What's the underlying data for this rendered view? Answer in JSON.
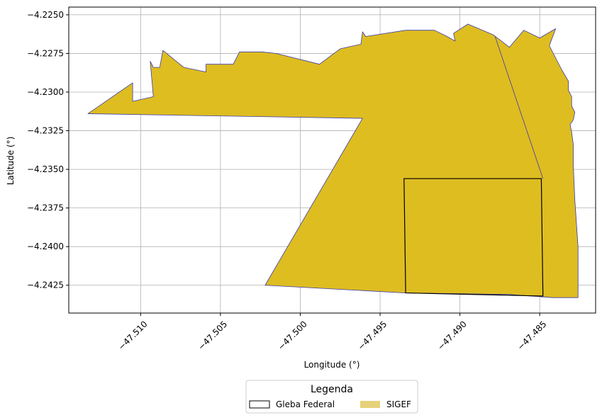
{
  "chart_data": {
    "type": "map",
    "xlabel": "Longitude (°)",
    "ylabel": "Latitude (°)",
    "xlim": [
      -47.5145,
      -47.4815
    ],
    "ylim": [
      -4.2443,
      -4.2245
    ],
    "x_ticks": [
      -47.51,
      -47.505,
      -47.5,
      -47.495,
      -47.49,
      -47.485
    ],
    "x_tick_labels": [
      "−47.510",
      "−47.505",
      "−47.500",
      "−47.495",
      "−47.490",
      "−47.485"
    ],
    "y_ticks": [
      -4.225,
      -4.2275,
      -4.23,
      -4.2325,
      -4.235,
      -4.2375,
      -4.24,
      -4.2425
    ],
    "y_tick_labels": [
      "−4.2250",
      "−4.2275",
      "−4.2300",
      "−4.2325",
      "−4.2350",
      "−4.2375",
      "−4.2400",
      "−4.2425"
    ],
    "grid": true,
    "legend_position": "bottom-center, below axes",
    "legend": {
      "title": "Legenda",
      "entries": [
        {
          "label": "Gleba Federal",
          "style": "outline",
          "color": "#000000"
        },
        {
          "label": "SIGEF",
          "style": "fill",
          "color": "#e6d27a"
        }
      ]
    },
    "layers": {
      "sigef": {
        "name": "SIGEF",
        "fill": "#debd21",
        "stroke": "#3b3ba8",
        "polygons": [
          [
            [
              -47.5133,
              -4.2314
            ],
            [
              -47.5105,
              -4.2294
            ],
            [
              -47.5105,
              -4.2306
            ],
            [
              -47.5092,
              -4.2303
            ],
            [
              -47.5094,
              -4.228
            ],
            [
              -47.5092,
              -4.2284
            ],
            [
              -47.5088,
              -4.2284
            ],
            [
              -47.5086,
              -4.2273
            ],
            [
              -47.5073,
              -4.2284
            ],
            [
              -47.5059,
              -4.2287
            ],
            [
              -47.5059,
              -4.2282
            ],
            [
              -47.5042,
              -4.2282
            ],
            [
              -47.5038,
              -4.2274
            ],
            [
              -47.5024,
              -4.2274
            ],
            [
              -47.5015,
              -4.2275
            ],
            [
              -47.4988,
              -4.2282
            ],
            [
              -47.4975,
              -4.2272
            ],
            [
              -47.4962,
              -4.2269
            ],
            [
              -47.4961,
              -4.2261
            ],
            [
              -47.4959,
              -4.2264
            ],
            [
              -47.4934,
              -4.226
            ],
            [
              -47.4916,
              -4.226
            ],
            [
              -47.4908,
              -4.2264
            ],
            [
              -47.4903,
              -4.2267
            ],
            [
              -47.4904,
              -4.2262
            ],
            [
              -47.4895,
              -4.2256
            ],
            [
              -47.4879,
              -4.2263
            ],
            [
              -47.4869,
              -4.2271
            ],
            [
              -47.486,
              -4.226
            ],
            [
              -47.485,
              -4.2265
            ],
            [
              -47.484,
              -4.2259
            ],
            [
              -47.4844,
              -4.227
            ],
            [
              -47.4836,
              -4.2286
            ],
            [
              -47.4832,
              -4.2293
            ],
            [
              -47.4832,
              -4.2299
            ],
            [
              -47.483,
              -4.2303
            ],
            [
              -47.483,
              -4.2309
            ],
            [
              -47.4828,
              -4.2313
            ],
            [
              -47.4829,
              -4.2318
            ],
            [
              -47.4831,
              -4.2321
            ],
            [
              -47.483,
              -4.2326
            ],
            [
              -47.4829,
              -4.2334
            ],
            [
              -47.4829,
              -4.2347
            ],
            [
              -47.4828,
              -4.237
            ],
            [
              -47.4826,
              -4.24
            ],
            [
              -47.4826,
              -4.2433
            ],
            [
              -47.4842,
              -4.2433
            ],
            [
              -47.4869,
              -4.2431
            ],
            [
              -47.4934,
              -4.243
            ],
            [
              -47.5022,
              -4.2425
            ],
            [
              -47.4961,
              -4.2317
            ],
            [
              -47.5133,
              -4.2314
            ]
          ]
        ],
        "internal_boundaries": [
          [
            [
              -47.4878,
              -4.2264
            ],
            [
              -47.4848,
              -4.2356
            ]
          ]
        ]
      },
      "gleba_federal": {
        "name": "Gleba Federal",
        "stroke": "#000000",
        "polygons": [
          [
            [
              -47.4935,
              -4.2356
            ],
            [
              -47.4849,
              -4.2356
            ],
            [
              -47.4848,
              -4.2432
            ],
            [
              -47.4934,
              -4.243
            ],
            [
              -47.4935,
              -4.2356
            ]
          ]
        ]
      }
    }
  }
}
